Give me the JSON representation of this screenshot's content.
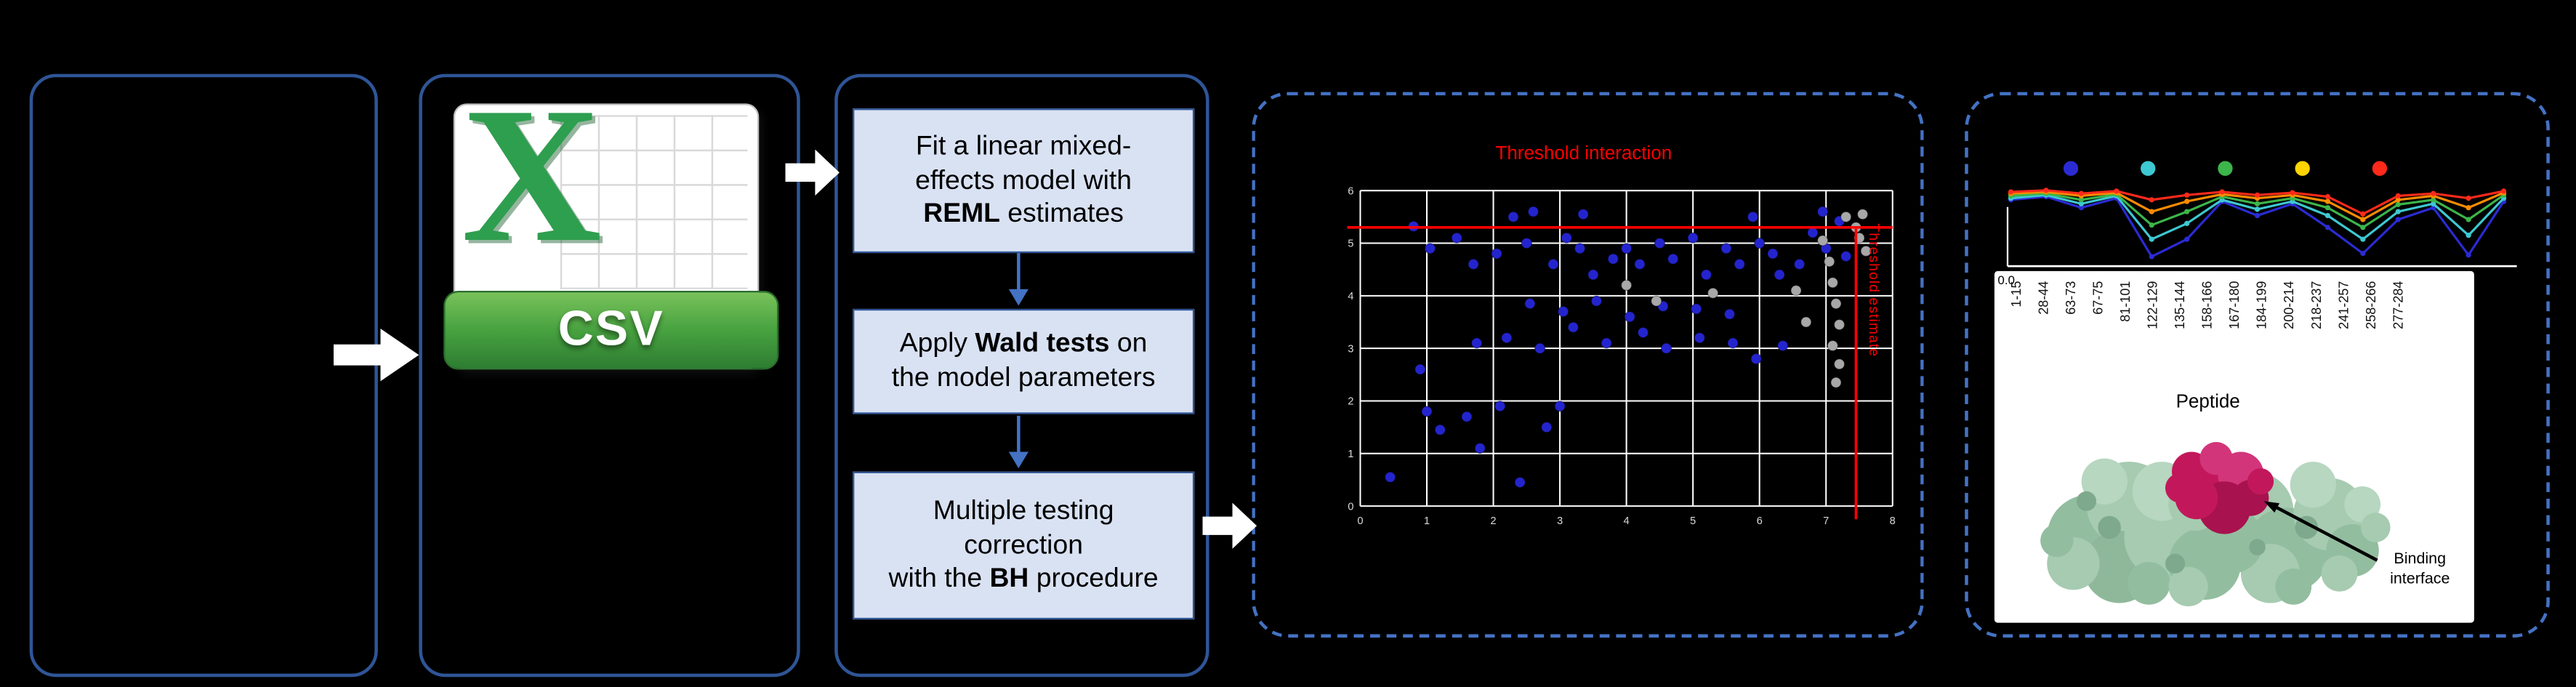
{
  "colors": {
    "background": "#000000",
    "panel_border": "#2F5597",
    "dashed_panel_border": "#4472C4",
    "process_box_fill": "#D9E2F3",
    "process_box_border": "#2F5597",
    "flow_arrow": "#FFFFFF",
    "threshold_red": "#FF0000",
    "significant_point": "#2424CE",
    "nonsignificant_point": "#A8A8A8",
    "csv_green": "#2E9E4F",
    "protein_surface_green": "#A6CBB0",
    "binding_interface_magenta": "#C2185B"
  },
  "csv": {
    "x_logo": "X",
    "label": "CSV"
  },
  "steps": [
    {
      "pre": "Fit a linear mixed-\neffects model with\n",
      "bold": "REML",
      "post": " estimates"
    },
    {
      "pre": "Apply ",
      "bold": "Wald tests",
      "post": " on\nthe model parameters"
    },
    {
      "pre": "Multiple testing\ncorrection\nwith the ",
      "bold": "BH",
      "post": " procedure"
    }
  ],
  "scatter": {
    "type": "scatter",
    "title": "Threshold interaction",
    "x_threshold_label": "Threshold estimate",
    "xlim": [
      0,
      8
    ],
    "ylim": [
      0,
      6
    ],
    "x_ticks": [
      0,
      1,
      2,
      3,
      4,
      5,
      6,
      7,
      8
    ],
    "y_ticks": [
      0,
      1,
      2,
      3,
      4,
      5,
      6
    ],
    "threshold_interaction_y": 5.3,
    "threshold_estimate_x": 7.45,
    "grid": true,
    "series": [
      {
        "name": "significant",
        "color": "#2424CE",
        "points": [
          [
            0.45,
            0.55
          ],
          [
            0.8,
            5.32
          ],
          [
            0.9,
            2.6
          ],
          [
            1.0,
            1.8
          ],
          [
            1.05,
            4.9
          ],
          [
            1.2,
            1.45
          ],
          [
            1.45,
            5.1
          ],
          [
            1.6,
            1.7
          ],
          [
            1.7,
            4.6
          ],
          [
            1.75,
            3.1
          ],
          [
            1.8,
            1.1
          ],
          [
            2.05,
            4.8
          ],
          [
            2.1,
            1.9
          ],
          [
            2.2,
            3.2
          ],
          [
            2.3,
            5.5
          ],
          [
            2.4,
            0.45
          ],
          [
            2.5,
            5.0
          ],
          [
            2.55,
            3.85
          ],
          [
            2.6,
            5.6
          ],
          [
            2.7,
            3.0
          ],
          [
            2.8,
            1.5
          ],
          [
            2.9,
            4.6
          ],
          [
            3.0,
            1.9
          ],
          [
            3.05,
            3.7
          ],
          [
            3.1,
            5.1
          ],
          [
            3.2,
            3.4
          ],
          [
            3.3,
            4.9
          ],
          [
            3.35,
            5.55
          ],
          [
            3.5,
            4.4
          ],
          [
            3.55,
            3.9
          ],
          [
            3.7,
            3.1
          ],
          [
            3.8,
            4.7
          ],
          [
            4.0,
            4.9
          ],
          [
            4.05,
            3.6
          ],
          [
            4.2,
            4.6
          ],
          [
            4.25,
            3.3
          ],
          [
            4.5,
            5.0
          ],
          [
            4.55,
            3.8
          ],
          [
            4.6,
            3.0
          ],
          [
            4.7,
            4.7
          ],
          [
            5.0,
            5.1
          ],
          [
            5.05,
            3.75
          ],
          [
            5.1,
            3.2
          ],
          [
            5.2,
            4.4
          ],
          [
            5.5,
            4.9
          ],
          [
            5.55,
            3.65
          ],
          [
            5.6,
            3.1
          ],
          [
            5.7,
            4.6
          ],
          [
            5.9,
            5.5
          ],
          [
            5.95,
            2.8
          ],
          [
            6.0,
            5.0
          ],
          [
            6.2,
            4.8
          ],
          [
            6.3,
            4.4
          ],
          [
            6.35,
            3.05
          ],
          [
            6.6,
            4.6
          ],
          [
            6.8,
            5.2
          ],
          [
            6.95,
            5.6
          ],
          [
            7.0,
            4.9
          ],
          [
            7.2,
            5.42
          ],
          [
            7.3,
            4.75
          ]
        ]
      },
      {
        "name": "not-significant",
        "color": "#A8A8A8",
        "points": [
          [
            4.0,
            4.2
          ],
          [
            4.45,
            3.9
          ],
          [
            5.3,
            4.05
          ],
          [
            6.55,
            4.1
          ],
          [
            6.7,
            3.5
          ],
          [
            6.95,
            5.05
          ],
          [
            7.05,
            4.65
          ],
          [
            7.1,
            4.25
          ],
          [
            7.15,
            3.85
          ],
          [
            7.2,
            3.45
          ],
          [
            7.1,
            3.05
          ],
          [
            7.2,
            2.7
          ],
          [
            7.15,
            2.35
          ],
          [
            7.3,
            5.5
          ],
          [
            7.45,
            5.3
          ],
          [
            7.55,
            5.55
          ],
          [
            7.5,
            5.1
          ],
          [
            7.6,
            4.85
          ]
        ]
      }
    ]
  },
  "peptide_chart": {
    "type": "line",
    "categories": [
      "1-15",
      "28-44",
      "63-73",
      "67-75",
      "81-101",
      "122-129",
      "135-144",
      "158-166",
      "167-180",
      "184-199",
      "200-214",
      "218-237",
      "241-257",
      "258-266",
      "277-284"
    ],
    "xlabel": "Peptide",
    "y_origin_label": "0.0",
    "ylim": [
      0,
      1
    ],
    "legend_dot_colors": [
      "#2B2BD4",
      "#3EC8D2",
      "#3CB54A",
      "#FFD400",
      "#FF2A1A"
    ],
    "series": [
      {
        "name": "series-blue",
        "color": "#2B2BD4",
        "values": [
          0.8,
          0.84,
          0.7,
          0.82,
          0.08,
          0.3,
          0.78,
          0.6,
          0.75,
          0.45,
          0.12,
          0.55,
          0.7,
          0.1,
          0.78
        ]
      },
      {
        "name": "series-teal",
        "color": "#3EC8D2",
        "values": [
          0.82,
          0.86,
          0.75,
          0.85,
          0.3,
          0.5,
          0.8,
          0.68,
          0.78,
          0.6,
          0.3,
          0.65,
          0.75,
          0.35,
          0.82
        ]
      },
      {
        "name": "series-green",
        "color": "#3CB54A",
        "values": [
          0.85,
          0.88,
          0.8,
          0.87,
          0.48,
          0.65,
          0.84,
          0.75,
          0.82,
          0.7,
          0.45,
          0.74,
          0.8,
          0.55,
          0.86
        ]
      },
      {
        "name": "series-orange",
        "color": "#FF8C00",
        "values": [
          0.88,
          0.9,
          0.85,
          0.89,
          0.65,
          0.78,
          0.87,
          0.82,
          0.86,
          0.78,
          0.55,
          0.8,
          0.85,
          0.7,
          0.89
        ]
      },
      {
        "name": "series-red",
        "color": "#FF2A1A",
        "values": [
          0.9,
          0.92,
          0.88,
          0.91,
          0.8,
          0.86,
          0.9,
          0.86,
          0.89,
          0.84,
          0.62,
          0.85,
          0.88,
          0.82,
          0.91
        ]
      }
    ]
  },
  "binding_interface_label": "Binding\ninterface"
}
